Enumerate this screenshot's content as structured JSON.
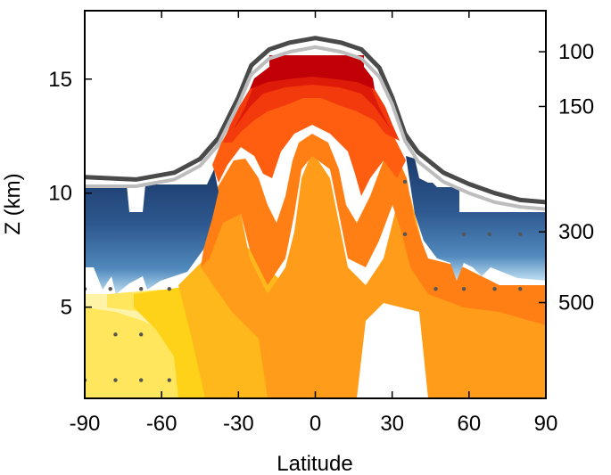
{
  "chart_data": {
    "type": "contour",
    "xlabel": "Latitude",
    "ylabel": "Z (km)",
    "xlim": [
      -90,
      90
    ],
    "ylim": [
      1,
      18
    ],
    "x_ticks": [
      "-90",
      "-60",
      "-30",
      "0",
      "30",
      "60",
      "90"
    ],
    "x_tick_values": [
      -90,
      -60,
      -30,
      0,
      30,
      60,
      90
    ],
    "y_ticks": [
      "5",
      "10",
      "15"
    ],
    "y_tick_values": [
      5,
      10,
      15
    ],
    "right_axis": {
      "ticks": [
        "100",
        "150",
        "300",
        "500"
      ],
      "tick_z_km": [
        16.2,
        13.8,
        8.3,
        5.2
      ]
    },
    "tropopause_lines": {
      "dark_z_km_by_lat": [
        [
          -90,
          10.7
        ],
        [
          -70,
          10.6
        ],
        [
          -55,
          10.9
        ],
        [
          -45,
          11.5
        ],
        [
          -38,
          12.4
        ],
        [
          -30,
          14.2
        ],
        [
          -25,
          15.6
        ],
        [
          -18,
          16.3
        ],
        [
          -10,
          16.6
        ],
        [
          0,
          16.8
        ],
        [
          10,
          16.6
        ],
        [
          18,
          16.3
        ],
        [
          25,
          15.5
        ],
        [
          30,
          14.2
        ],
        [
          35,
          12.6
        ],
        [
          40,
          11.8
        ],
        [
          50,
          10.9
        ],
        [
          60,
          10.4
        ],
        [
          70,
          10.0
        ],
        [
          80,
          9.7
        ],
        [
          90,
          9.6
        ]
      ],
      "light_z_km_by_lat": [
        [
          -90,
          10.3
        ],
        [
          -70,
          10.3
        ],
        [
          -55,
          10.6
        ],
        [
          -45,
          11.2
        ],
        [
          -38,
          12.1
        ],
        [
          -30,
          13.9
        ],
        [
          -25,
          15.2
        ],
        [
          -18,
          15.9
        ],
        [
          -10,
          16.2
        ],
        [
          0,
          16.4
        ],
        [
          10,
          16.2
        ],
        [
          18,
          15.9
        ],
        [
          25,
          15.1
        ],
        [
          30,
          13.9
        ],
        [
          35,
          12.3
        ],
        [
          40,
          11.4
        ],
        [
          50,
          10.5
        ],
        [
          60,
          10.0
        ],
        [
          70,
          9.6
        ],
        [
          80,
          9.4
        ],
        [
          90,
          9.3
        ]
      ]
    },
    "stipple_points": [
      [
        -90,
        5.8
      ],
      [
        -80,
        5.8
      ],
      [
        -68,
        5.8
      ],
      [
        -57,
        5.8
      ],
      [
        -78,
        3.8
      ],
      [
        -68,
        3.8
      ],
      [
        -78,
        1.8
      ],
      [
        -68,
        1.8
      ],
      [
        -90,
        1.8
      ],
      [
        -57,
        1.8
      ],
      [
        35,
        10.5
      ],
      [
        35,
        8.2
      ],
      [
        47,
        5.8
      ],
      [
        58,
        5.8
      ],
      [
        70,
        5.8
      ],
      [
        80,
        5.8
      ],
      [
        58,
        8.2
      ],
      [
        68,
        8.2
      ],
      [
        80,
        8.2
      ]
    ],
    "colors": {
      "dark_line": "#4a4a4a",
      "light_line": "#bdbdbd",
      "blue_levels": [
        "#1b3a6b",
        "#24477e",
        "#2e5990",
        "#3a6ea6",
        "#5089bd",
        "#79a9d4"
      ],
      "warm_levels": [
        "#fff3a8",
        "#ffe65c",
        "#ffd21a",
        "#ffb81c",
        "#ff9c1a",
        "#ff7f14",
        "#ff5e10",
        "#f23a0c",
        "#dd1b08",
        "#c00006"
      ]
    }
  }
}
